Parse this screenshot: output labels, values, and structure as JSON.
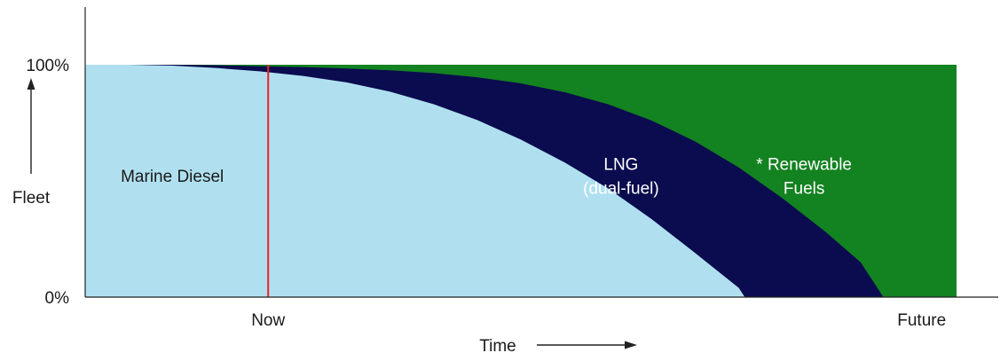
{
  "chart_data": {
    "type": "area",
    "stacked": true,
    "x_domain": [
      0,
      100
    ],
    "y_domain": [
      0,
      100
    ],
    "xlabel": "Time",
    "ylabel": "Fleet",
    "y_ticks": [
      {
        "value": 100,
        "label": "100%"
      },
      {
        "value": 0,
        "label": "0%"
      }
    ],
    "x_ticks": [
      {
        "value": 21,
        "label": "Now"
      },
      {
        "value": 96,
        "label": "Future"
      }
    ],
    "series": [
      {
        "name": "Marine Diesel",
        "label_lines": [
          "Marine Diesel"
        ],
        "color": "#b0e0f0",
        "label_color": "#1a1a1a",
        "label_at": [
          10,
          52
        ],
        "boundary": [
          [
            0,
            100
          ],
          [
            5,
            100
          ],
          [
            10,
            99.6
          ],
          [
            15,
            98.6
          ],
          [
            20,
            97.2
          ],
          [
            25,
            95.2
          ],
          [
            30,
            92.4
          ],
          [
            35,
            88.4
          ],
          [
            40,
            83
          ],
          [
            45,
            76.2
          ],
          [
            50,
            67.8
          ],
          [
            55,
            58
          ],
          [
            60,
            46.8
          ],
          [
            65,
            33.6
          ],
          [
            70,
            19
          ],
          [
            75,
            4
          ],
          [
            75.7,
            0
          ]
        ]
      },
      {
        "name": "LNG (dual-fuel)",
        "label_lines": [
          "LNG",
          "(dual-fuel)"
        ],
        "color": "#0b0b4f",
        "label_color": "#ffffff",
        "label_at": [
          61.5,
          52
        ],
        "boundary": [
          [
            0,
            100
          ],
          [
            10,
            100
          ],
          [
            15,
            99.8
          ],
          [
            20,
            99.4
          ],
          [
            25,
            99
          ],
          [
            30,
            98.4
          ],
          [
            35,
            97.6
          ],
          [
            40,
            96.4
          ],
          [
            45,
            94.6
          ],
          [
            50,
            92
          ],
          [
            55,
            88.2
          ],
          [
            60,
            83
          ],
          [
            65,
            76
          ],
          [
            70,
            67
          ],
          [
            75,
            55.8
          ],
          [
            80,
            42.6
          ],
          [
            85,
            28
          ],
          [
            89,
            15
          ],
          [
            91.6,
            0
          ]
        ]
      },
      {
        "name": "* Renewable Fuels",
        "label_lines": [
          "* Renewable",
          "Fuels"
        ],
        "color": "#138220",
        "label_color": "#ffffff",
        "label_at": [
          82.5,
          52
        ],
        "boundary": [
          [
            0,
            100
          ],
          [
            100,
            100
          ]
        ]
      }
    ],
    "markers": [
      {
        "x": 21,
        "color": "#ee2222"
      }
    ],
    "grid": false,
    "legend": "none"
  }
}
